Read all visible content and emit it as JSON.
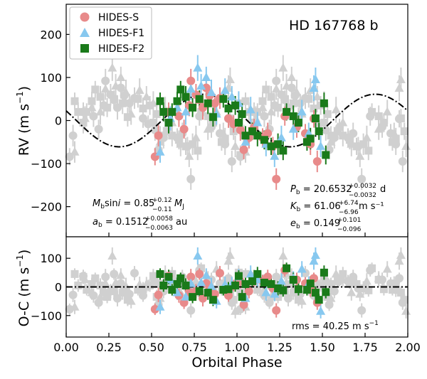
{
  "chart_data": [
    {
      "type": "scatter",
      "panel": "top",
      "title": "HD 167768 b",
      "ylabel": "RV (m s$^{-1}$)",
      "ylabel_text": "RV (m s",
      "ylabel_sup": "−1",
      "ylabel_close": ")",
      "xlim": [
        0.0,
        2.0
      ],
      "ylim": [
        -270,
        270
      ],
      "yticks": [
        -200,
        -100,
        0,
        100,
        200
      ],
      "ytick_labels": [
        "−200",
        "−100",
        "0",
        "100",
        "200"
      ],
      "legend": {
        "placement": "top-left",
        "entries": [
          {
            "label": "HIDES-S",
            "marker": "circle",
            "color": "#e88a8a"
          },
          {
            "label": "HIDES-F1",
            "marker": "triangle",
            "color": "#87c8ef"
          },
          {
            "label": "HIDES-F2",
            "marker": "square",
            "color": "#1a7a1a"
          }
        ]
      },
      "model": {
        "amplitude": 61.06,
        "phase_of_max": 0.81,
        "style": "dash-dot",
        "color": "#000000"
      },
      "faded_color": "#d0d0d0",
      "annotations_left": [
        {
          "main": "M_b sin i = 0.85",
          "sup": "+0.12",
          "sub": "−0.11",
          "unit": "M_J"
        },
        {
          "main": "a_b = 0.1512",
          "sup": "+0.0058",
          "sub": "−0.0063",
          "unit": "au"
        }
      ],
      "annotations_right": [
        {
          "main": "P_b = 20.6532",
          "sup": "+0.0032",
          "sub": "−0.0032",
          "unit": "d"
        },
        {
          "main": "K_b = 61.06",
          "sup": "+6.74",
          "sub": "−6.96",
          "unit": "m s⁻¹"
        },
        {
          "main": "e_b = 0.149",
          "sup": "+0.101",
          "sub": "−0.096",
          "unit": ""
        }
      ],
      "series": [
        {
          "name": "HIDES-S",
          "marker": "circle",
          "color": "#e88a8a",
          "points": [
            [
              0.52,
              -84,
              20
            ],
            [
              0.54,
              -35,
              25
            ],
            [
              0.6,
              20,
              22
            ],
            [
              0.66,
              10,
              25
            ],
            [
              0.69,
              -20,
              22
            ],
            [
              0.72,
              35,
              25
            ],
            [
              0.73,
              92,
              28
            ],
            [
              0.76,
              60,
              25
            ],
            [
              0.78,
              48,
              20
            ],
            [
              0.8,
              30,
              28
            ],
            [
              0.82,
              76,
              25
            ],
            [
              0.84,
              58,
              20
            ],
            [
              0.87,
              40,
              22
            ],
            [
              0.9,
              52,
              25
            ],
            [
              0.95,
              5,
              22
            ],
            [
              0.98,
              -8,
              20
            ],
            [
              1.02,
              -22,
              25
            ],
            [
              1.04,
              -68,
              22
            ],
            [
              1.07,
              -40,
              25
            ],
            [
              1.1,
              -16,
              20
            ],
            [
              1.15,
              -40,
              22
            ],
            [
              1.18,
              -30,
              25
            ],
            [
              1.21,
              -60,
              22
            ],
            [
              1.23,
              -136,
              25
            ],
            [
              1.28,
              10,
              22
            ],
            [
              1.35,
              -15,
              25
            ],
            [
              1.4,
              -30,
              22
            ],
            [
              1.43,
              -55,
              25
            ],
            [
              1.45,
              4,
              20
            ],
            [
              1.47,
              -95,
              25
            ]
          ]
        },
        {
          "name": "HIDES-F1",
          "marker": "triangle",
          "color": "#87c8ef",
          "points": [
            [
              0.55,
              -73,
              25
            ],
            [
              0.61,
              5,
              28
            ],
            [
              0.65,
              30,
              25
            ],
            [
              0.7,
              20,
              30
            ],
            [
              0.73,
              73,
              25
            ],
            [
              0.77,
              122,
              30
            ],
            [
              0.79,
              80,
              28
            ],
            [
              0.82,
              100,
              25
            ],
            [
              0.85,
              65,
              30
            ],
            [
              0.88,
              15,
              25
            ],
            [
              0.93,
              70,
              28
            ],
            [
              0.97,
              55,
              25
            ],
            [
              1.01,
              40,
              28
            ],
            [
              1.05,
              -50,
              25
            ],
            [
              1.08,
              25,
              30
            ],
            [
              1.12,
              -5,
              25
            ],
            [
              1.17,
              -55,
              28
            ],
            [
              1.22,
              -83,
              25
            ],
            [
              1.26,
              -40,
              28
            ],
            [
              1.33,
              -20,
              25
            ],
            [
              1.38,
              20,
              28
            ],
            [
              1.42,
              -30,
              25
            ],
            [
              1.45,
              75,
              30
            ],
            [
              1.46,
              95,
              28
            ],
            [
              1.49,
              -60,
              25
            ]
          ]
        },
        {
          "name": "HIDES-F2",
          "marker": "square",
          "color": "#1a7a1a",
          "points": [
            [
              0.55,
              45,
              20
            ],
            [
              0.57,
              20,
              22
            ],
            [
              0.6,
              -5,
              25
            ],
            [
              0.62,
              20,
              20
            ],
            [
              0.65,
              45,
              22
            ],
            [
              0.67,
              72,
              20
            ],
            [
              0.7,
              55,
              25
            ],
            [
              0.74,
              30,
              22
            ],
            [
              0.78,
              50,
              20
            ],
            [
              0.83,
              40,
              25
            ],
            [
              0.86,
              8,
              22
            ],
            [
              0.92,
              50,
              20
            ],
            [
              0.95,
              28,
              25
            ],
            [
              0.99,
              35,
              22
            ],
            [
              1.01,
              -5,
              20
            ],
            [
              1.03,
              15,
              25
            ],
            [
              1.05,
              -35,
              22
            ],
            [
              1.09,
              -25,
              20
            ],
            [
              1.12,
              -35,
              25
            ],
            [
              1.16,
              -45,
              22
            ],
            [
              1.2,
              -60,
              20
            ],
            [
              1.24,
              -55,
              25
            ],
            [
              1.27,
              -70,
              22
            ],
            [
              1.29,
              20,
              20
            ],
            [
              1.33,
              10,
              25
            ],
            [
              1.36,
              -5,
              22
            ],
            [
              1.41,
              -50,
              20
            ],
            [
              1.43,
              -42,
              25
            ],
            [
              1.46,
              5,
              22
            ],
            [
              1.48,
              -25,
              20
            ],
            [
              1.51,
              40,
              25
            ],
            [
              1.52,
              -80,
              22
            ]
          ]
        }
      ]
    },
    {
      "type": "scatter",
      "panel": "bottom",
      "xlabel": "Orbital Phase",
      "ylabel": "O-C (m s$^{-1}$)",
      "ylabel_text": "O-C (m s",
      "ylabel_sup": "−1",
      "ylabel_close": ")",
      "xlim": [
        0.0,
        2.0
      ],
      "ylim": [
        -175,
        175
      ],
      "xticks": [
        0.0,
        0.25,
        0.5,
        0.75,
        1.0,
        1.25,
        1.5,
        1.75,
        2.0
      ],
      "xtick_labels": [
        "0.00",
        "0.25",
        "0.50",
        "0.75",
        "1.00",
        "1.25",
        "1.50",
        "1.75",
        "2.00"
      ],
      "yticks": [
        -100,
        0,
        100
      ],
      "ytick_labels": [
        "−100",
        "0",
        "100"
      ],
      "rms_text": "rms = 40.25 m s",
      "rms_sup": "−1",
      "series": [
        {
          "name": "HIDES-S",
          "marker": "circle",
          "color": "#e88a8a",
          "points": [
            [
              0.52,
              -78,
              20
            ],
            [
              0.54,
              -28,
              25
            ],
            [
              0.6,
              38,
              22
            ],
            [
              0.66,
              -30,
              25
            ],
            [
              0.69,
              -55,
              22
            ],
            [
              0.72,
              -18,
              25
            ],
            [
              0.73,
              35,
              28
            ],
            [
              0.76,
              -15,
              25
            ],
            [
              0.78,
              45,
              20
            ],
            [
              0.8,
              -40,
              28
            ],
            [
              0.82,
              12,
              25
            ],
            [
              0.84,
              -8,
              20
            ],
            [
              0.87,
              -25,
              22
            ],
            [
              0.9,
              48,
              25
            ],
            [
              0.95,
              -30,
              22
            ],
            [
              0.98,
              5,
              20
            ],
            [
              1.02,
              20,
              25
            ],
            [
              1.04,
              -62,
              22
            ],
            [
              1.07,
              -15,
              25
            ],
            [
              1.1,
              22,
              20
            ],
            [
              1.15,
              20,
              22
            ],
            [
              1.18,
              35,
              25
            ],
            [
              1.21,
              -5,
              22
            ],
            [
              1.23,
              -82,
              25
            ],
            [
              1.28,
              58,
              22
            ],
            [
              1.35,
              25,
              25
            ],
            [
              1.4,
              12,
              22
            ],
            [
              1.43,
              -10,
              25
            ],
            [
              1.45,
              30,
              20
            ],
            [
              1.47,
              -55,
              25
            ]
          ]
        },
        {
          "name": "HIDES-F1",
          "marker": "triangle",
          "color": "#87c8ef",
          "points": [
            [
              0.55,
              -70,
              25
            ],
            [
              0.61,
              25,
              28
            ],
            [
              0.65,
              -20,
              25
            ],
            [
              0.7,
              -35,
              30
            ],
            [
              0.73,
              12,
              25
            ],
            [
              0.77,
              108,
              30
            ],
            [
              0.79,
              15,
              28
            ],
            [
              0.82,
              40,
              25
            ],
            [
              0.85,
              2,
              30
            ],
            [
              0.88,
              -50,
              25
            ],
            [
              0.93,
              8,
              28
            ],
            [
              0.97,
              10,
              25
            ],
            [
              1.01,
              35,
              28
            ],
            [
              1.05,
              -40,
              25
            ],
            [
              1.08,
              45,
              30
            ],
            [
              1.12,
              25,
              25
            ],
            [
              1.17,
              -20,
              28
            ],
            [
              1.22,
              -25,
              25
            ],
            [
              1.26,
              20,
              28
            ],
            [
              1.33,
              30,
              25
            ],
            [
              1.38,
              62,
              28
            ],
            [
              1.42,
              12,
              25
            ],
            [
              1.45,
              90,
              30
            ],
            [
              1.46,
              110,
              28
            ],
            [
              1.49,
              -85,
              25
            ]
          ]
        },
        {
          "name": "HIDES-F2",
          "marker": "square",
          "color": "#1a7a1a",
          "points": [
            [
              0.55,
              45,
              20
            ],
            [
              0.57,
              5,
              22
            ],
            [
              0.6,
              35,
              25
            ],
            [
              0.62,
              -10,
              20
            ],
            [
              0.65,
              10,
              22
            ],
            [
              0.67,
              30,
              20
            ],
            [
              0.7,
              5,
              25
            ],
            [
              0.74,
              -35,
              22
            ],
            [
              0.78,
              -15,
              20
            ],
            [
              0.83,
              -20,
              25
            ],
            [
              0.86,
              -45,
              22
            ],
            [
              0.92,
              -10,
              20
            ],
            [
              0.95,
              -8,
              25
            ],
            [
              0.99,
              5,
              22
            ],
            [
              1.01,
              38,
              20
            ],
            [
              1.03,
              -35,
              25
            ],
            [
              1.05,
              10,
              22
            ],
            [
              1.09,
              20,
              20
            ],
            [
              1.12,
              45,
              25
            ],
            [
              1.16,
              15,
              22
            ],
            [
              1.2,
              10,
              20
            ],
            [
              1.24,
              -5,
              25
            ],
            [
              1.27,
              -12,
              22
            ],
            [
              1.29,
              65,
              20
            ],
            [
              1.33,
              25,
              25
            ],
            [
              1.36,
              -8,
              22
            ],
            [
              1.41,
              -10,
              20
            ],
            [
              1.43,
              12,
              25
            ],
            [
              1.46,
              -20,
              22
            ],
            [
              1.48,
              -45,
              20
            ],
            [
              1.51,
              50,
              25
            ],
            [
              1.52,
              -18,
              22
            ]
          ]
        }
      ]
    }
  ]
}
